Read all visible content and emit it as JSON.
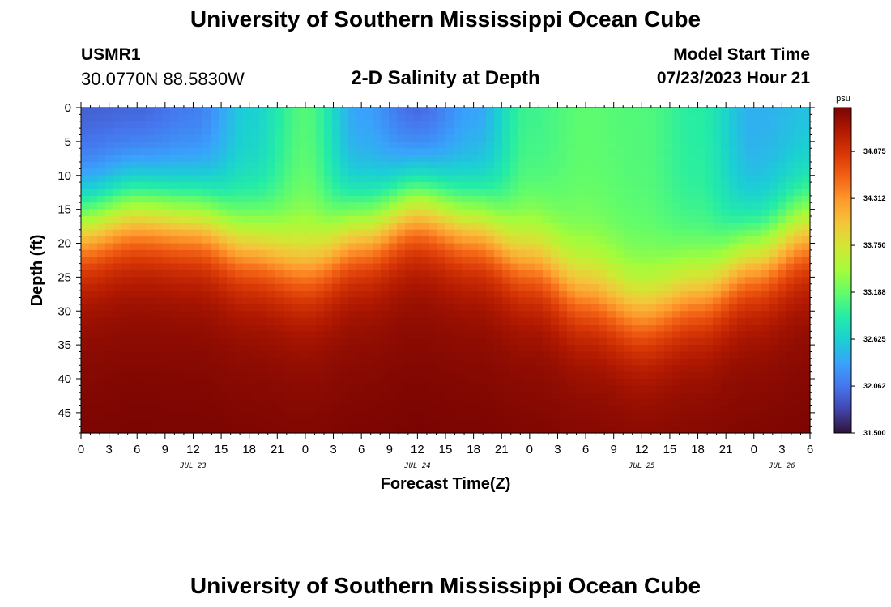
{
  "header": {
    "title": "University of Southern Mississippi Ocean Cube",
    "station": "USMR1",
    "coords": "30.0770N  88.5830W",
    "plot_title": "2-D Salinity at Depth",
    "start_label": "Model Start Time",
    "start_value": "07/23/2023 Hour 21"
  },
  "footer": {
    "title": "University of Southern Mississippi Ocean Cube"
  },
  "chart_data": {
    "type": "heatmap",
    "title": "2-D Salinity at Depth",
    "xlabel": "Forecast Time(Z)",
    "ylabel": "Depth (ft)",
    "x_tick_labels": [
      "0",
      "3",
      "6",
      "9",
      "12",
      "15",
      "18",
      "21",
      "0",
      "3",
      "6",
      "9",
      "12",
      "15",
      "18",
      "21",
      "0",
      "3",
      "6",
      "9",
      "12",
      "15",
      "18",
      "21",
      "0",
      "3",
      "6"
    ],
    "x_range_hours": [
      0,
      78
    ],
    "day_labels": [
      {
        "label": "JUL 23",
        "hour": 12
      },
      {
        "label": "JUL 24",
        "hour": 36
      },
      {
        "label": "JUL 25",
        "hour": 60
      },
      {
        "label": "JUL 26",
        "hour": 75
      }
    ],
    "y_ticks": [
      0,
      5,
      10,
      15,
      20,
      25,
      30,
      35,
      40,
      45
    ],
    "ylim": [
      0,
      48
    ],
    "colorbar": {
      "unit": "psu",
      "min": 31.5,
      "max": 35.4,
      "tick_labels": [
        "34.875",
        "34.312",
        "33.750",
        "33.188",
        "32.625",
        "32.062",
        "31.500"
      ],
      "tick_values": [
        34.875,
        34.312,
        33.75,
        33.188,
        32.625,
        32.062,
        31.5
      ],
      "colormap": [
        "#30123b",
        "#4145ab",
        "#4675ed",
        "#39a2fc",
        "#1bcfd4",
        "#24eca6",
        "#61fc6c",
        "#a4fc3b",
        "#d1e834",
        "#f3c63a",
        "#fe9b2d",
        "#f36315",
        "#d93806",
        "#b11901",
        "#7a0402"
      ]
    },
    "surface_salinity": {
      "hours": [
        0,
        6,
        12,
        18,
        24,
        30,
        36,
        42,
        48,
        54,
        60,
        66,
        72,
        78
      ],
      "psu": [
        31.9,
        31.9,
        32.05,
        32.6,
        33.1,
        32.3,
        31.9,
        32.3,
        33.0,
        33.15,
        33.1,
        32.9,
        32.4,
        32.5
      ]
    },
    "halocline_depth_ft": {
      "hours": [
        0,
        6,
        12,
        18,
        24,
        30,
        36,
        42,
        48,
        54,
        60,
        66,
        72,
        78
      ],
      "depth": [
        17,
        15,
        16,
        20,
        23,
        18,
        14,
        17,
        22,
        27,
        30,
        27,
        22,
        18
      ]
    },
    "bottom_salinity_psu": 35.25
  }
}
